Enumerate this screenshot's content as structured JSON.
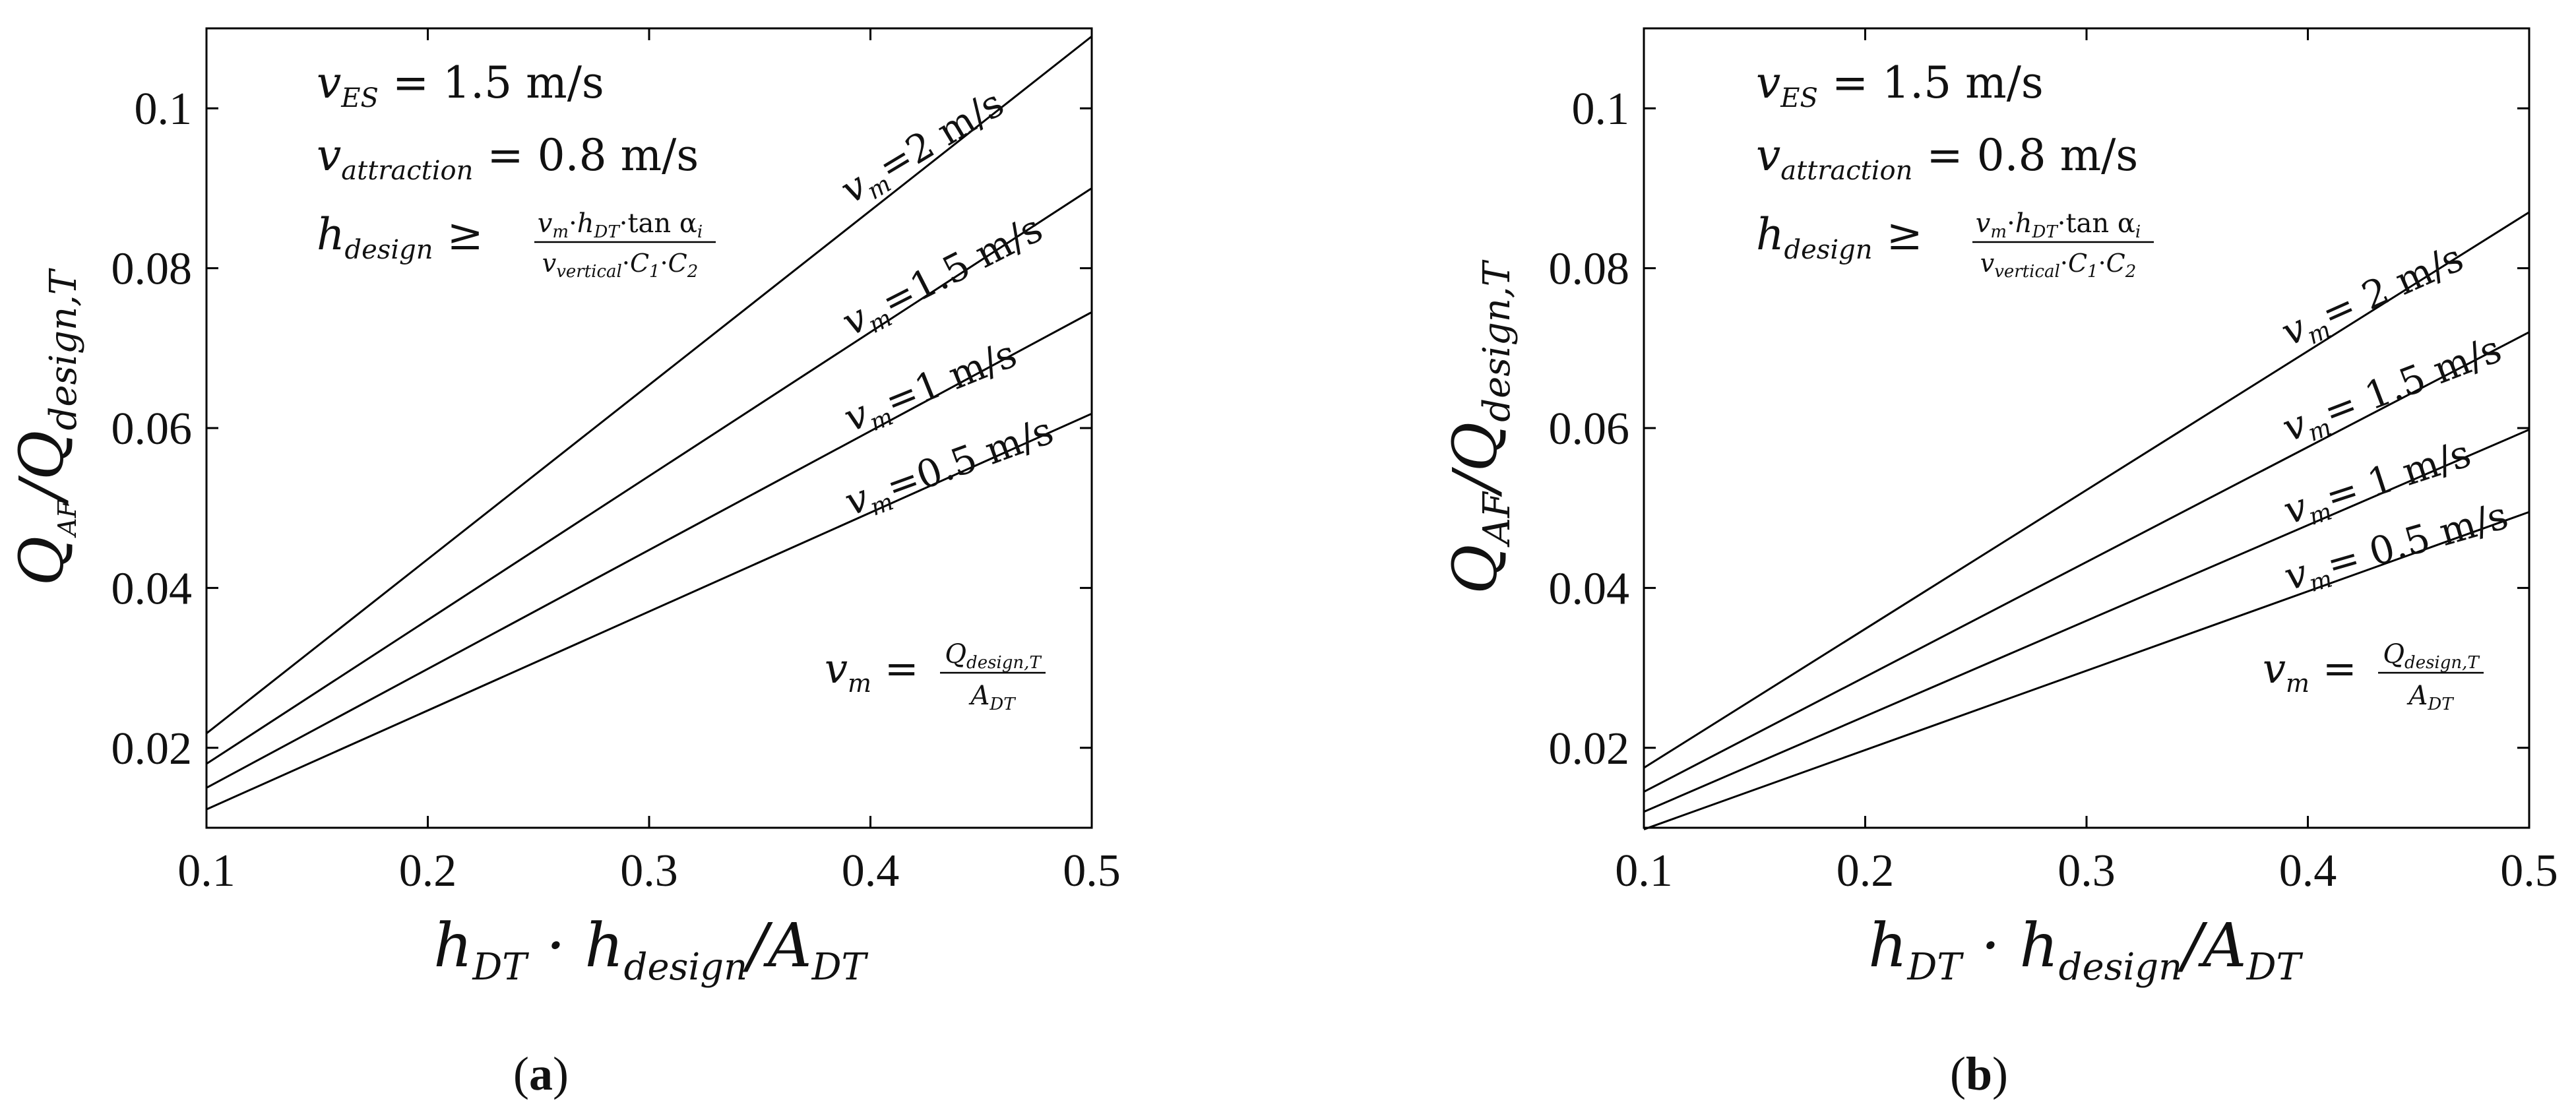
{
  "chart_data": [
    {
      "type": "line",
      "panel_label": "a",
      "xlabel": "h_DT · h_design / A_DT",
      "ylabel": "Q_AF / Q_design,T",
      "xlim": [
        0.1,
        0.5
      ],
      "ylim": [
        0.01,
        0.11
      ],
      "xticks": [
        0.1,
        0.2,
        0.3,
        0.4,
        0.5
      ],
      "xtick_labels": [
        "0.1",
        "0.2",
        "0.3",
        "0.4",
        "0.5"
      ],
      "yticks": [
        0.02,
        0.04,
        0.06,
        0.08,
        0.1
      ],
      "ytick_labels": [
        "0.02",
        "0.04",
        "0.06",
        "0.08",
        "0.1"
      ],
      "grid": false,
      "annotations": {
        "ves": "= 1.5 m/s",
        "vatt": "= 0.8 m/s",
        "hdesign_formula": "≥ (v_m·h_DT·tan α_i)/(v_vertical·C_1·C_2)",
        "vm_formula": "= Q_design,T / A_DT"
      },
      "series": [
        {
          "name": "=2 m/s",
          "x": [
            0.1,
            0.5
          ],
          "values": [
            0.0218,
            0.109
          ]
        },
        {
          "name": "=1.5 m/s",
          "x": [
            0.1,
            0.5
          ],
          "values": [
            0.018,
            0.09
          ]
        },
        {
          "name": "=1 m/s",
          "x": [
            0.1,
            0.5
          ],
          "values": [
            0.015,
            0.0745
          ]
        },
        {
          "name": "=0.5 m/s",
          "x": [
            0.1,
            0.5
          ],
          "values": [
            0.0123,
            0.0618
          ]
        }
      ]
    },
    {
      "type": "line",
      "panel_label": "b",
      "xlabel": "h_DT · h_design / A_DT",
      "ylabel": "Q_AF / Q_design,T",
      "xlim": [
        0.1,
        0.5
      ],
      "ylim": [
        0.01,
        0.11
      ],
      "xticks": [
        0.1,
        0.2,
        0.3,
        0.4,
        0.5
      ],
      "xtick_labels": [
        "0.1",
        "0.2",
        "0.3",
        "0.4",
        "0.5"
      ],
      "yticks": [
        0.02,
        0.04,
        0.06,
        0.08,
        0.1
      ],
      "ytick_labels": [
        "0.02",
        "0.04",
        "0.06",
        "0.08",
        "0.1"
      ],
      "grid": false,
      "annotations": {
        "ves": "= 1.5 m/s",
        "vatt": "= 0.8 m/s",
        "hdesign_formula": "≥ (v_m·h_DT·tan α_i)/(v_vertical·C_1·C_2)",
        "vm_formula": "= Q_design,T / A_DT"
      },
      "series": [
        {
          "name": "= 2 m/s",
          "x": [
            0.1,
            0.5
          ],
          "values": [
            0.0175,
            0.087
          ]
        },
        {
          "name": "= 1.5 m/s",
          "x": [
            0.1,
            0.5
          ],
          "values": [
            0.0145,
            0.072
          ]
        },
        {
          "name": "= 1 m/s",
          "x": [
            0.1,
            0.5
          ],
          "values": [
            0.012,
            0.0598
          ]
        },
        {
          "name": "= 0.5 m/s",
          "x": [
            0.1,
            0.5
          ],
          "values": [
            0.0098,
            0.0495
          ]
        }
      ]
    }
  ],
  "captions": [
    "(a)",
    "(b)"
  ]
}
